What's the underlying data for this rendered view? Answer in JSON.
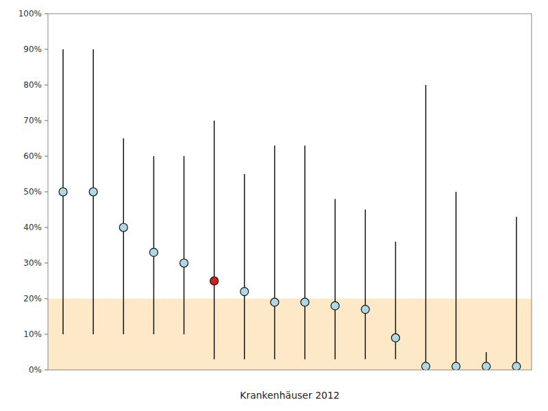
{
  "chart_data": {
    "type": "range",
    "x_label": "Krankenhäuser 2012",
    "categories": [
      null,
      null,
      null,
      null,
      null,
      null,
      null,
      null,
      null,
      null,
      null,
      null,
      null,
      null,
      null,
      null
    ],
    "values": [
      50,
      50,
      40,
      33,
      30,
      25,
      22,
      19,
      19,
      18,
      17,
      9,
      1,
      1,
      1,
      1
    ],
    "low": [
      10,
      10,
      10,
      10,
      10,
      3,
      3,
      3,
      3,
      3,
      3,
      3,
      0,
      0,
      0,
      0
    ],
    "high": [
      90,
      90,
      65,
      60,
      60,
      70,
      55,
      63,
      63,
      48,
      45,
      36,
      80,
      50,
      5,
      43
    ],
    "color": "#111111",
    "colors": [
      "#add8e6",
      "#add8e6",
      "#add8e6",
      "#add8e6",
      "#add8e6",
      "#cc2222",
      "#add8e6",
      "#add8e6",
      "#add8e6",
      "#add8e6",
      "#add8e6",
      "#add8e6",
      "#add8e6",
      "#add8e6",
      "#add8e6",
      "#add8e6"
    ],
    "band": {
      "from": 0,
      "to": 20,
      "color": "#fde8c8"
    },
    "ylim": [
      0,
      100
    ],
    "yticks": [
      {
        "value": 0,
        "label": "0%"
      },
      {
        "value": 10,
        "label": "10%"
      },
      {
        "value": 20,
        "label": "20%"
      },
      {
        "value": 30,
        "label": "30%"
      },
      {
        "value": 40,
        "label": "40%"
      },
      {
        "value": 50,
        "label": "50%"
      },
      {
        "value": 60,
        "label": "60%"
      },
      {
        "value": 70,
        "label": "70%"
      },
      {
        "value": 80,
        "label": "80%"
      },
      {
        "value": 90,
        "label": "90%"
      },
      {
        "value": 100,
        "label": "100%"
      }
    ],
    "tick_labels": "y",
    "grid": false
  }
}
